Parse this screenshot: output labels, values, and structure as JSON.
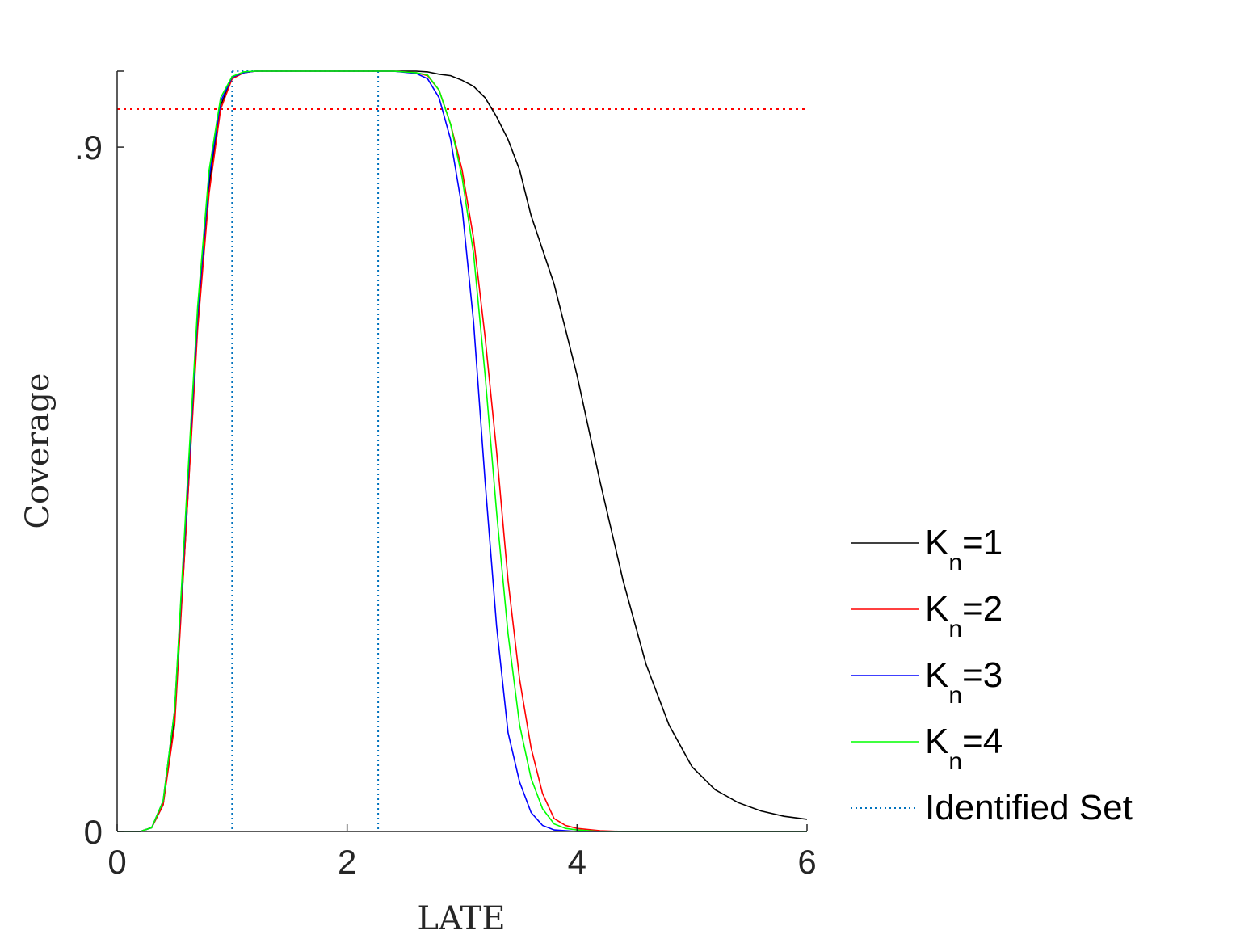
{
  "chart_data": {
    "type": "line",
    "xlabel": "LATE",
    "ylabel": "Coverage",
    "xlim": [
      0,
      6
    ],
    "ylim": [
      0,
      1
    ],
    "x_ticks": [
      {
        "value": 0,
        "label": "0"
      },
      {
        "value": 2,
        "label": "2"
      },
      {
        "value": 4,
        "label": "4"
      },
      {
        "value": 6,
        "label": "6"
      }
    ],
    "y_ticks": [
      {
        "value": 0,
        "label": "0"
      },
      {
        "value": 0.9,
        "label": ".9"
      }
    ],
    "nominal_level": {
      "value": 0.95,
      "color": "#ff0000",
      "style": "dotted"
    },
    "identified_set": {
      "lower": 1.0,
      "upper": 2.27,
      "color": "#0072bd",
      "style": "dotted"
    },
    "series": [
      {
        "legend": {
          "prefix": "K",
          "sub": "n",
          "suffix": "=1"
        },
        "color": "#000000",
        "x": [
          0,
          0.2,
          0.3,
          0.4,
          0.5,
          0.6,
          0.7,
          0.8,
          0.9,
          1.0,
          1.1,
          1.2,
          1.4,
          1.6,
          1.8,
          2.0,
          2.2,
          2.4,
          2.6,
          2.7,
          2.8,
          2.9,
          3.0,
          3.1,
          3.2,
          3.3,
          3.4,
          3.5,
          3.6,
          3.8,
          4.0,
          4.2,
          4.4,
          4.6,
          4.8,
          5.0,
          5.1,
          5.2,
          5.4,
          5.6,
          5.8,
          6.0
        ],
        "y": [
          0,
          0,
          0.005,
          0.035,
          0.15,
          0.4,
          0.67,
          0.85,
          0.955,
          0.99,
          0.998,
          1.0,
          1.0,
          1.0,
          1.0,
          1.0,
          1.0,
          1.0,
          1.0,
          0.999,
          0.996,
          0.994,
          0.988,
          0.98,
          0.965,
          0.94,
          0.91,
          0.87,
          0.81,
          0.72,
          0.6,
          0.46,
          0.33,
          0.22,
          0.14,
          0.085,
          0.07,
          0.055,
          0.038,
          0.027,
          0.02,
          0.016
        ]
      },
      {
        "legend": {
          "prefix": "K",
          "sub": "n",
          "suffix": "=2"
        },
        "color": "#ff0000",
        "x": [
          0,
          0.2,
          0.3,
          0.4,
          0.5,
          0.6,
          0.7,
          0.8,
          0.9,
          1.0,
          1.1,
          1.2,
          1.4,
          1.6,
          1.8,
          2.0,
          2.2,
          2.4,
          2.6,
          2.7,
          2.8,
          2.9,
          3.0,
          3.1,
          3.2,
          3.3,
          3.4,
          3.5,
          3.6,
          3.7,
          3.8,
          3.9,
          4.0,
          4.2,
          4.4,
          5.0,
          6.0
        ],
        "y": [
          0,
          0,
          0.005,
          0.035,
          0.14,
          0.4,
          0.66,
          0.84,
          0.95,
          0.99,
          0.998,
          1.0,
          1.0,
          1.0,
          1.0,
          1.0,
          1.0,
          1.0,
          0.998,
          0.994,
          0.975,
          0.93,
          0.87,
          0.78,
          0.65,
          0.5,
          0.33,
          0.2,
          0.11,
          0.05,
          0.017,
          0.008,
          0.004,
          0.001,
          0,
          0,
          0
        ]
      },
      {
        "legend": {
          "prefix": "K",
          "sub": "n",
          "suffix": "=3"
        },
        "color": "#0000ff",
        "x": [
          0,
          0.2,
          0.3,
          0.4,
          0.5,
          0.6,
          0.7,
          0.8,
          0.9,
          1.0,
          1.1,
          1.2,
          1.4,
          1.6,
          1.8,
          2.0,
          2.2,
          2.4,
          2.6,
          2.7,
          2.8,
          2.9,
          3.0,
          3.1,
          3.2,
          3.3,
          3.4,
          3.5,
          3.6,
          3.7,
          3.8,
          3.9,
          4.0,
          4.2,
          5.0,
          6.0
        ],
        "y": [
          0,
          0,
          0.005,
          0.04,
          0.16,
          0.42,
          0.68,
          0.86,
          0.96,
          0.992,
          0.998,
          1.0,
          1.0,
          1.0,
          1.0,
          1.0,
          1.0,
          1.0,
          0.997,
          0.99,
          0.965,
          0.91,
          0.82,
          0.67,
          0.46,
          0.27,
          0.13,
          0.065,
          0.025,
          0.008,
          0.002,
          0.001,
          0,
          0,
          0,
          0
        ]
      },
      {
        "legend": {
          "prefix": "K",
          "sub": "n",
          "suffix": "=4"
        },
        "color": "#00ff00",
        "x": [
          0,
          0.2,
          0.3,
          0.4,
          0.5,
          0.6,
          0.7,
          0.8,
          0.9,
          1.0,
          1.1,
          1.2,
          1.4,
          1.6,
          1.8,
          2.0,
          2.2,
          2.4,
          2.6,
          2.7,
          2.8,
          2.9,
          3.0,
          3.1,
          3.2,
          3.3,
          3.4,
          3.5,
          3.6,
          3.7,
          3.8,
          3.9,
          4.0,
          4.2,
          5.0,
          6.0
        ],
        "y": [
          0,
          0,
          0.005,
          0.04,
          0.16,
          0.43,
          0.69,
          0.87,
          0.965,
          0.993,
          0.999,
          1.0,
          1.0,
          1.0,
          1.0,
          1.0,
          1.0,
          1.0,
          0.998,
          0.995,
          0.975,
          0.93,
          0.86,
          0.76,
          0.6,
          0.42,
          0.26,
          0.14,
          0.07,
          0.03,
          0.01,
          0.004,
          0.002,
          0,
          0,
          0
        ]
      }
    ],
    "identified_set_legend": "Identified Set",
    "legend_position": "lower-right-outside"
  }
}
